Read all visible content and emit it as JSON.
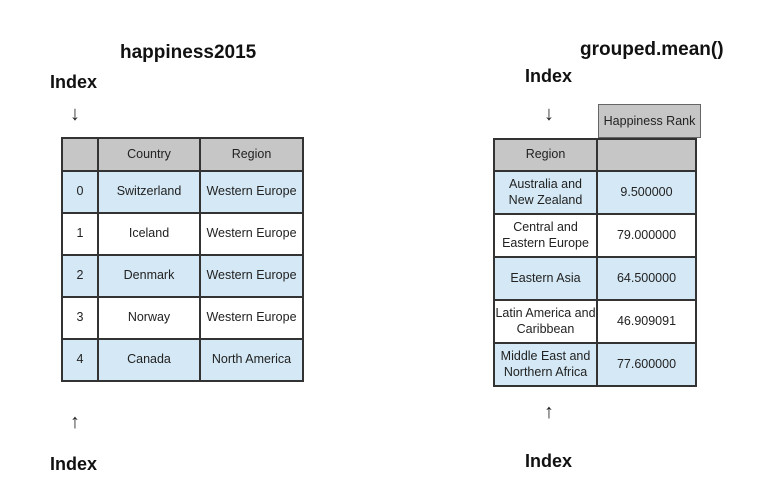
{
  "left": {
    "title": "happiness2015",
    "index_top": "Index",
    "index_bottom": "Index",
    "arrow_down": "↓",
    "arrow_up": "↑",
    "columns": [
      "",
      "Country",
      "Region"
    ],
    "rows": [
      [
        "0",
        "Switzerland",
        "Western Europe"
      ],
      [
        "1",
        "Iceland",
        "Western Europe"
      ],
      [
        "2",
        "Denmark",
        "Western Europe"
      ],
      [
        "3",
        "Norway",
        "Western Europe"
      ],
      [
        "4",
        "Canada",
        "North America"
      ]
    ]
  },
  "right": {
    "title": "grouped.mean()",
    "index_top": "Index",
    "index_bottom": "Index",
    "arrow_down": "↓",
    "arrow_up": "↑",
    "column_header": "Happiness Rank",
    "index_header": "Region",
    "rows": [
      [
        "Australia and New Zealand",
        "9.500000"
      ],
      [
        "Central and Eastern Europe",
        "79.000000"
      ],
      [
        "Eastern Asia",
        "64.500000"
      ],
      [
        "Latin America and Caribbean",
        "46.909091"
      ],
      [
        "Middle East and Northern Africa",
        "77.600000"
      ]
    ]
  },
  "colors": {
    "header_gray": "#c6c6c6",
    "row_blue": "#d4e8f5",
    "row_white": "#ffffff",
    "border": "#333333"
  }
}
